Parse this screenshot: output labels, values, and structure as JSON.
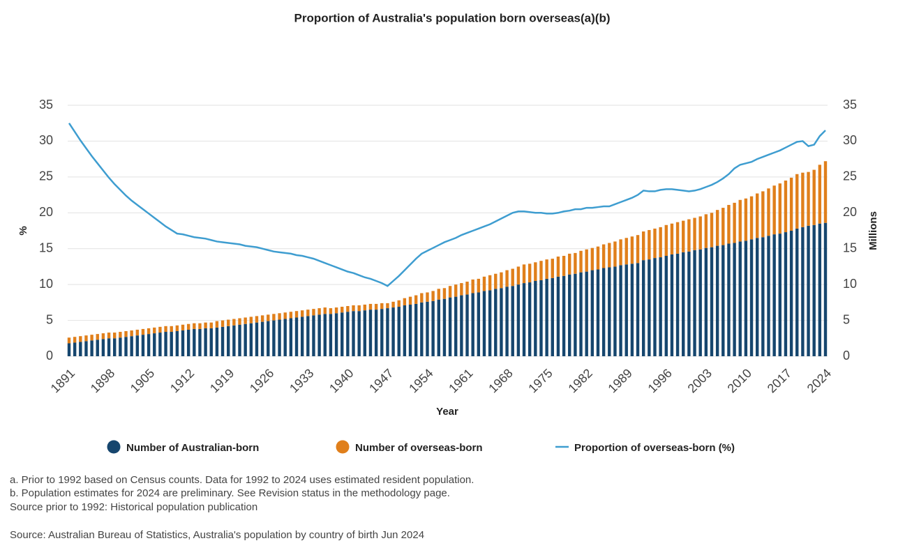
{
  "chart_data": {
    "type": "bar-line",
    "title": "Proportion of Australia's population born overseas(a)(b)",
    "x_label": "Year",
    "y_label": "%",
    "y2_label": "Millions",
    "x": [
      1891,
      1892,
      1893,
      1894,
      1895,
      1896,
      1897,
      1898,
      1899,
      1900,
      1901,
      1902,
      1903,
      1904,
      1905,
      1906,
      1907,
      1908,
      1909,
      1910,
      1911,
      1912,
      1913,
      1914,
      1915,
      1916,
      1917,
      1918,
      1919,
      1920,
      1921,
      1922,
      1923,
      1924,
      1925,
      1926,
      1927,
      1928,
      1929,
      1930,
      1931,
      1932,
      1933,
      1934,
      1935,
      1936,
      1937,
      1938,
      1939,
      1940,
      1941,
      1942,
      1943,
      1944,
      1945,
      1946,
      1947,
      1948,
      1949,
      1950,
      1951,
      1952,
      1953,
      1954,
      1955,
      1956,
      1957,
      1958,
      1959,
      1960,
      1961,
      1962,
      1963,
      1964,
      1965,
      1966,
      1967,
      1968,
      1969,
      1970,
      1971,
      1972,
      1973,
      1974,
      1975,
      1976,
      1977,
      1978,
      1979,
      1980,
      1981,
      1982,
      1983,
      1984,
      1985,
      1986,
      1987,
      1988,
      1989,
      1990,
      1991,
      1992,
      1993,
      1994,
      1995,
      1996,
      1997,
      1998,
      1999,
      2000,
      2001,
      2002,
      2003,
      2004,
      2005,
      2006,
      2007,
      2008,
      2009,
      2010,
      2011,
      2012,
      2013,
      2014,
      2015,
      2016,
      2017,
      2018,
      2019,
      2020,
      2021,
      2022,
      2023,
      2024
    ],
    "xlim": [
      1891,
      2024
    ],
    "xticks": [
      1891,
      1898,
      1905,
      1912,
      1919,
      1926,
      1933,
      1940,
      1947,
      1954,
      1961,
      1968,
      1975,
      1982,
      1989,
      1996,
      2003,
      2010,
      2017,
      2024
    ],
    "ylim": [
      0,
      35
    ],
    "yticks": [
      0,
      5,
      10,
      15,
      20,
      25,
      30,
      35
    ],
    "y2lim": [
      0,
      35
    ],
    "y2ticks": [
      0,
      5,
      10,
      15,
      20,
      25,
      30,
      35
    ],
    "grid": true,
    "series": [
      {
        "name": "Number of Australian-born",
        "color": "#16466e",
        "mark": "bar",
        "axis": "y2",
        "values": [
          1.8,
          1.9,
          2.0,
          2.1,
          2.2,
          2.3,
          2.4,
          2.5,
          2.5,
          2.6,
          2.7,
          2.8,
          2.9,
          3.0,
          3.1,
          3.2,
          3.3,
          3.4,
          3.4,
          3.5,
          3.6,
          3.7,
          3.8,
          3.8,
          3.9,
          3.9,
          4.0,
          4.1,
          4.2,
          4.3,
          4.4,
          4.5,
          4.6,
          4.7,
          4.8,
          4.9,
          5.0,
          5.1,
          5.2,
          5.3,
          5.4,
          5.5,
          5.6,
          5.7,
          5.8,
          5.9,
          5.9,
          6.0,
          6.1,
          6.2,
          6.3,
          6.3,
          6.4,
          6.5,
          6.5,
          6.6,
          6.7,
          6.8,
          6.9,
          7.1,
          7.2,
          7.3,
          7.5,
          7.6,
          7.7,
          7.9,
          8.0,
          8.2,
          8.3,
          8.5,
          8.6,
          8.8,
          8.9,
          9.1,
          9.2,
          9.4,
          9.5,
          9.7,
          9.8,
          10.0,
          10.2,
          10.3,
          10.5,
          10.6,
          10.8,
          10.9,
          11.1,
          11.2,
          11.4,
          11.5,
          11.7,
          11.8,
          12.0,
          12.1,
          12.3,
          12.4,
          12.5,
          12.7,
          12.8,
          12.9,
          13.0,
          13.4,
          13.5,
          13.7,
          13.8,
          14.0,
          14.2,
          14.3,
          14.5,
          14.6,
          14.8,
          14.9,
          15.1,
          15.2,
          15.4,
          15.5,
          15.7,
          15.8,
          16.0,
          16.1,
          16.3,
          16.5,
          16.6,
          16.8,
          17.0,
          17.1,
          17.3,
          17.5,
          17.8,
          18.0,
          18.2,
          18.3,
          18.5,
          18.6
        ]
      },
      {
        "name": "Number of overseas-born",
        "color": "#e07f1b",
        "mark": "bar",
        "axis": "y2",
        "values": [
          0.8,
          0.8,
          0.8,
          0.8,
          0.8,
          0.8,
          0.8,
          0.8,
          0.8,
          0.8,
          0.8,
          0.8,
          0.8,
          0.8,
          0.8,
          0.8,
          0.8,
          0.8,
          0.8,
          0.8,
          0.8,
          0.8,
          0.8,
          0.8,
          0.8,
          0.8,
          0.9,
          0.9,
          0.9,
          0.9,
          0.9,
          0.9,
          0.9,
          0.9,
          0.9,
          0.9,
          0.9,
          0.9,
          0.9,
          0.9,
          0.9,
          0.9,
          0.9,
          0.9,
          0.9,
          0.9,
          0.8,
          0.8,
          0.8,
          0.8,
          0.8,
          0.8,
          0.8,
          0.8,
          0.8,
          0.8,
          0.7,
          0.8,
          0.9,
          1.0,
          1.1,
          1.2,
          1.3,
          1.3,
          1.4,
          1.5,
          1.5,
          1.6,
          1.7,
          1.7,
          1.8,
          1.9,
          1.9,
          2.0,
          2.1,
          2.1,
          2.2,
          2.3,
          2.4,
          2.5,
          2.6,
          2.6,
          2.6,
          2.7,
          2.7,
          2.7,
          2.8,
          2.8,
          2.9,
          2.9,
          3.0,
          3.1,
          3.1,
          3.2,
          3.3,
          3.4,
          3.5,
          3.6,
          3.7,
          3.8,
          3.9,
          4.0,
          4.1,
          4.1,
          4.2,
          4.3,
          4.3,
          4.4,
          4.4,
          4.5,
          4.5,
          4.6,
          4.7,
          4.8,
          5.0,
          5.2,
          5.4,
          5.6,
          5.8,
          5.9,
          6.0,
          6.2,
          6.4,
          6.6,
          6.8,
          7.0,
          7.2,
          7.4,
          7.6,
          7.6,
          7.5,
          7.7,
          8.2,
          8.6
        ]
      },
      {
        "name": "Proportion of overseas-born (%)",
        "color": "#3e9dd0",
        "mark": "line",
        "axis": "y",
        "values": [
          32.5,
          31.3,
          30.1,
          29.0,
          27.9,
          26.9,
          25.9,
          24.9,
          24.0,
          23.2,
          22.4,
          21.7,
          21.1,
          20.5,
          19.9,
          19.3,
          18.7,
          18.1,
          17.6,
          17.1,
          17.0,
          16.8,
          16.6,
          16.5,
          16.4,
          16.2,
          16.0,
          15.9,
          15.8,
          15.7,
          15.6,
          15.4,
          15.3,
          15.2,
          15.0,
          14.8,
          14.6,
          14.5,
          14.4,
          14.3,
          14.1,
          14.0,
          13.8,
          13.6,
          13.3,
          13.0,
          12.7,
          12.4,
          12.1,
          11.8,
          11.6,
          11.3,
          11.0,
          10.8,
          10.5,
          10.2,
          9.8,
          10.5,
          11.2,
          12.0,
          12.8,
          13.6,
          14.3,
          14.7,
          15.1,
          15.5,
          15.9,
          16.2,
          16.5,
          16.9,
          17.2,
          17.5,
          17.8,
          18.1,
          18.4,
          18.8,
          19.2,
          19.6,
          20.0,
          20.2,
          20.2,
          20.1,
          20.0,
          20.0,
          19.9,
          19.9,
          20.0,
          20.2,
          20.3,
          20.5,
          20.5,
          20.7,
          20.7,
          20.8,
          20.9,
          20.9,
          21.2,
          21.5,
          21.8,
          22.1,
          22.5,
          23.1,
          23.0,
          23.0,
          23.2,
          23.3,
          23.3,
          23.2,
          23.1,
          23.0,
          23.1,
          23.3,
          23.6,
          23.9,
          24.3,
          24.8,
          25.4,
          26.2,
          26.7,
          26.9,
          27.1,
          27.5,
          27.8,
          28.1,
          28.4,
          28.7,
          29.1,
          29.5,
          29.9,
          30.0,
          29.3,
          29.5,
          30.7,
          31.5
        ]
      }
    ],
    "notes": [
      "a. Prior to 1992 based on Census counts. Data for 1992 to 2024 uses estimated resident population.",
      "b. Population estimates for 2024 are preliminary. See Revision status in the methodology page.",
      "Source prior to 1992: Historical population publication"
    ],
    "source": "Source: Australian Bureau of Statistics, Australia's population by country of birth Jun 2024"
  }
}
